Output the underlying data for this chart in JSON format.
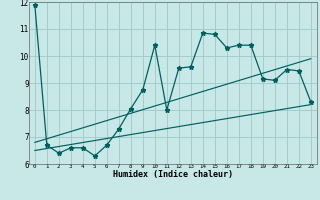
{
  "title": "",
  "xlabel": "Humidex (Indice chaleur)",
  "ylabel": "",
  "bg_color": "#c8e8e8",
  "grid_color": "#a0c8c8",
  "line_color": "#006060",
  "xlim": [
    -0.5,
    23.5
  ],
  "ylim": [
    6,
    12
  ],
  "xtick_values": [
    0,
    1,
    2,
    3,
    4,
    5,
    6,
    7,
    8,
    9,
    10,
    11,
    12,
    13,
    14,
    15,
    16,
    17,
    18,
    19,
    20,
    21,
    22,
    23
  ],
  "ytick_values": [
    6,
    7,
    8,
    9,
    10,
    11,
    12
  ],
  "series": [
    {
      "x": [
        0,
        1,
        2,
        3,
        4,
        5,
        6,
        7,
        8,
        9,
        10,
        11,
        12,
        13,
        14,
        15,
        16,
        17,
        18,
        19,
        20,
        21,
        22,
        23
      ],
      "y": [
        11.9,
        6.7,
        6.4,
        6.6,
        6.6,
        6.3,
        6.7,
        7.3,
        8.05,
        8.75,
        10.4,
        8.0,
        9.55,
        9.6,
        10.85,
        10.8,
        10.3,
        10.4,
        10.4,
        9.15,
        9.1,
        9.5,
        9.45,
        8.3
      ],
      "marker": "*",
      "linewidth": 0.9,
      "markersize": 3.5
    },
    {
      "x": [
        0,
        23
      ],
      "y": [
        6.8,
        9.9
      ],
      "marker": null,
      "linewidth": 0.85,
      "markersize": 0
    },
    {
      "x": [
        0,
        23
      ],
      "y": [
        6.5,
        8.2
      ],
      "marker": null,
      "linewidth": 0.85,
      "markersize": 0
    }
  ]
}
